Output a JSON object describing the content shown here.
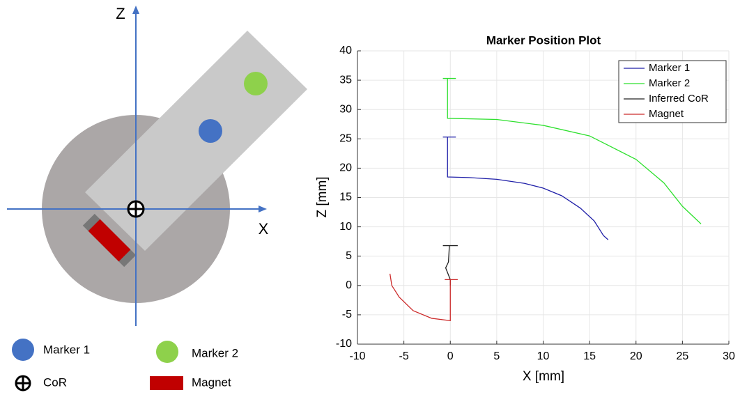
{
  "diagram": {
    "z_axis": "Z",
    "x_axis": "X",
    "legend": [
      "Marker 1",
      "Marker 2",
      "CoR",
      "Magnet"
    ]
  },
  "chart_data": {
    "type": "line",
    "title": "Marker Position Plot",
    "x_label": "X [mm]",
    "y_label": "Z [mm]",
    "xlim": [
      -10,
      30
    ],
    "xticks": [
      -10,
      -5,
      0,
      5,
      10,
      15,
      20,
      25,
      30
    ],
    "ylim": [
      -10,
      40
    ],
    "yticks": [
      -10,
      -5,
      0,
      5,
      10,
      15,
      20,
      25,
      30,
      35,
      40
    ],
    "grid": true,
    "legend": "upper right",
    "series": [
      {
        "name": "Marker 1",
        "color": "#1f1fa8",
        "x": [
          -0.8,
          0.6,
          -0.3,
          -0.3,
          2,
          5,
          8,
          10,
          12,
          14,
          15.5,
          16.5,
          17
        ],
        "values": [
          25.3,
          25.3,
          25.3,
          18.5,
          18.4,
          18.1,
          17.4,
          16.6,
          15.3,
          13.2,
          11,
          8.5,
          7.8
        ]
      },
      {
        "name": "Marker 2",
        "color": "#2ee02e",
        "x": [
          -0.8,
          0.6,
          -0.3,
          -0.3,
          5,
          10,
          15,
          20,
          23,
          25,
          27
        ],
        "values": [
          35.3,
          35.3,
          35.3,
          28.5,
          28.3,
          27.3,
          25.5,
          21.5,
          17.5,
          13.5,
          10.5
        ]
      },
      {
        "name": "Inferred CoR",
        "color": "#222222",
        "x": [
          -0.8,
          0.8,
          -0.1,
          -0.2,
          -0.5,
          0,
          0
        ],
        "values": [
          6.8,
          6.8,
          6.8,
          4,
          3,
          1,
          0
        ]
      },
      {
        "name": "Magnet",
        "color": "#cc2a2a",
        "x": [
          -0.6,
          0.8,
          0,
          0,
          -2,
          -4,
          -5.5,
          -6.3,
          -6.5
        ],
        "values": [
          1,
          1,
          1,
          -6,
          -5.6,
          -4.3,
          -2,
          0,
          2
        ]
      }
    ]
  }
}
